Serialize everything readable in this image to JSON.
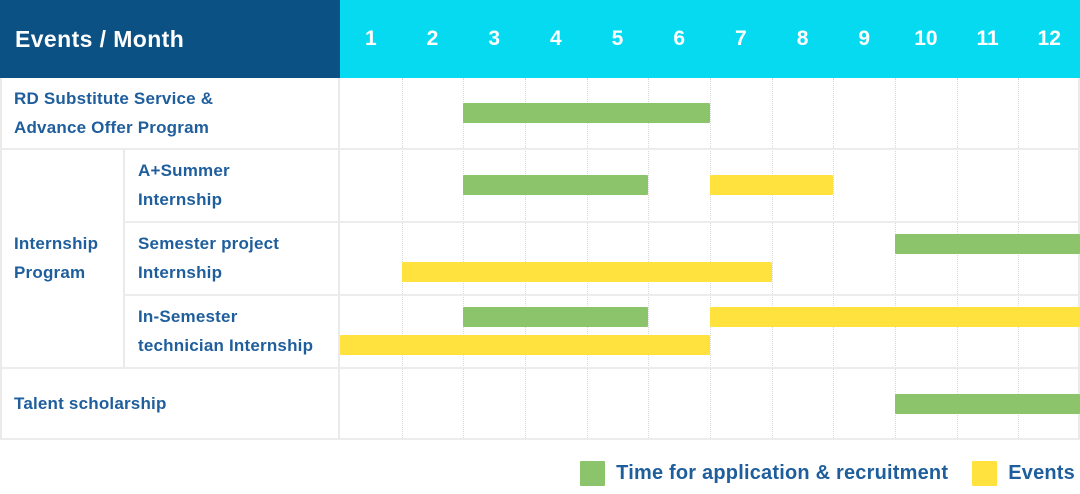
{
  "header": {
    "title": "Events / Month",
    "months": [
      "1",
      "2",
      "3",
      "4",
      "5",
      "6",
      "7",
      "8",
      "9",
      "10",
      "11",
      "12"
    ]
  },
  "colors": {
    "header_bg": "#0b5183",
    "months_bg": "#06daf0",
    "recruitment_green": "#8bc46a",
    "event_yellow": "#ffe23d",
    "text_blue": "#1f5e9c"
  },
  "legend": [
    {
      "type": "recruitment",
      "label": "Time for application & recruitment"
    },
    {
      "type": "event",
      "label": "Events"
    }
  ],
  "chart_data": {
    "type": "gantt",
    "title": "Events / Month",
    "x_unit": "month",
    "x_range": [
      1,
      12
    ],
    "x_ticks": [
      1,
      2,
      3,
      4,
      5,
      6,
      7,
      8,
      9,
      10,
      11,
      12
    ],
    "legend": {
      "recruitment": "Time for application & recruitment",
      "event": "Events"
    },
    "rows": [
      {
        "group": null,
        "label": "RD Substitute Service &\nAdvance Offer Program",
        "bars": [
          {
            "type": "recruitment",
            "start": 3,
            "end": 6
          }
        ]
      },
      {
        "group": "Internship\nProgram",
        "label": "A+Summer\nInternship",
        "bars": [
          {
            "type": "recruitment",
            "start": 3,
            "end": 5
          },
          {
            "type": "event",
            "start": 7,
            "end": 8
          }
        ]
      },
      {
        "group": "Internship\nProgram",
        "label": "Semester project\nInternship",
        "bars": [
          {
            "type": "recruitment",
            "start": 10,
            "end": 12,
            "lane": "top"
          },
          {
            "type": "event",
            "start": 2,
            "end": 7,
            "lane": "bottom"
          }
        ]
      },
      {
        "group": "Internship\nProgram",
        "label": "In-Semester\ntechnician Internship",
        "bars": [
          {
            "type": "recruitment",
            "start": 3,
            "end": 5,
            "lane": "top"
          },
          {
            "type": "event",
            "start": 7,
            "end": 12,
            "lane": "top"
          },
          {
            "type": "event",
            "start": 1,
            "end": 6,
            "lane": "bottom"
          }
        ]
      },
      {
        "group": null,
        "label": "Talent scholarship",
        "bars": [
          {
            "type": "recruitment",
            "start": 10,
            "end": 12
          }
        ]
      }
    ]
  }
}
